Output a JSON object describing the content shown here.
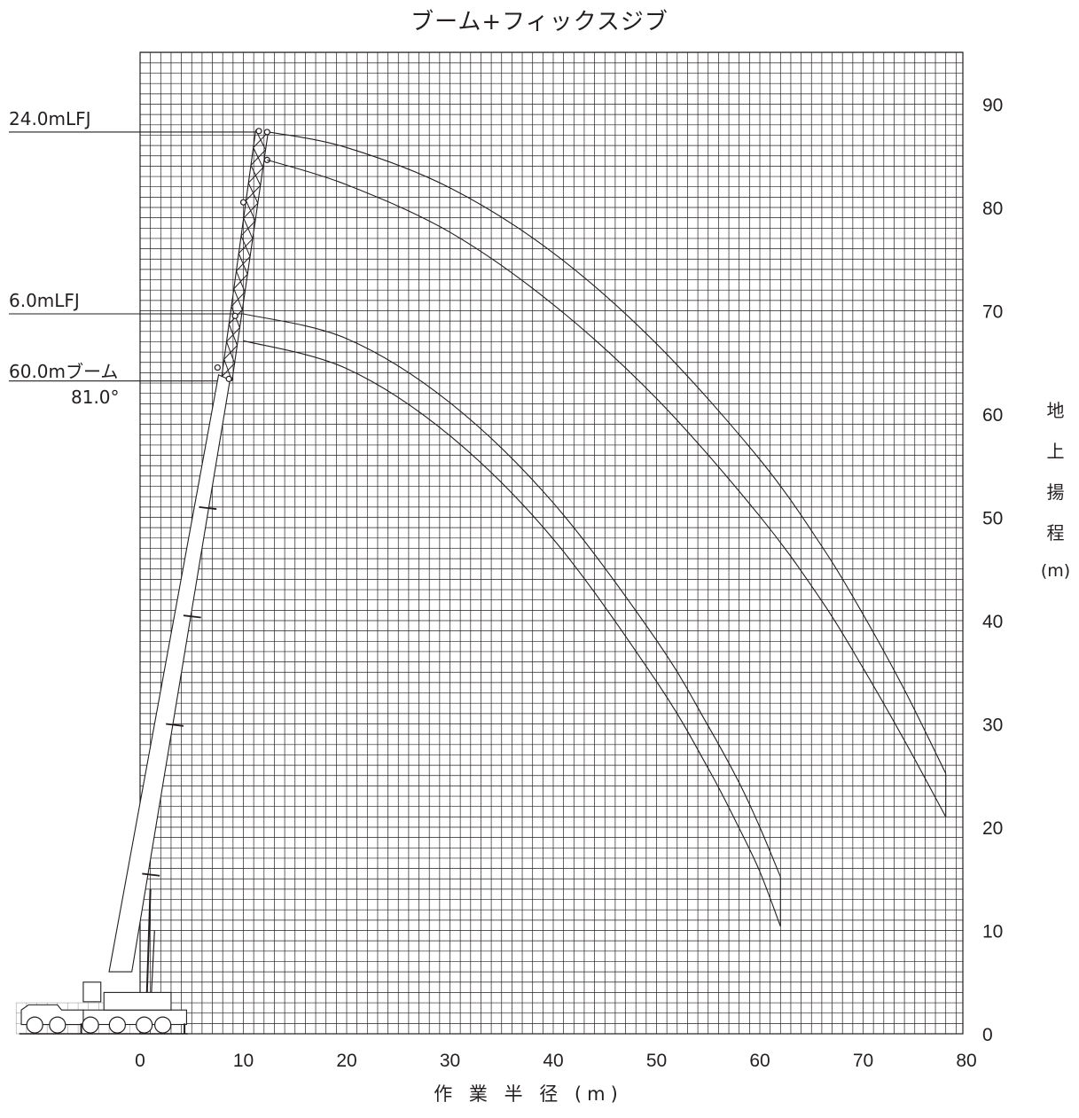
{
  "title": "ブーム+フィックスジブ",
  "y_axis_label": {
    "chars": [
      "地",
      "上",
      "揚",
      "程"
    ],
    "unit": "(m)"
  },
  "x_axis_label": "作 業 半 径 (m)",
  "callouts": {
    "jib_24": "24.0mLFJ",
    "jib_6": "6.0mLFJ",
    "boom": "60.0mブーム",
    "angle": "81.0°"
  },
  "colors": {
    "line": "#231f20",
    "grid": "#231f20",
    "background": "#ffffff"
  },
  "chart_data": {
    "type": "line",
    "title": "ブーム+フィックスジブ",
    "xlabel": "作 業 半 径 (m)",
    "ylabel": "地上揚程 (m)",
    "xlim": [
      -12,
      80
    ],
    "ylim": [
      0,
      92
    ],
    "x_ticks": [
      0,
      10,
      20,
      30,
      40,
      50,
      60,
      70,
      80
    ],
    "y_ticks": [
      0,
      10,
      20,
      30,
      40,
      50,
      60,
      70,
      80,
      90
    ],
    "grid": true,
    "grid_minor_step": 1,
    "series": [
      {
        "x": [
          12.5,
          20,
          30,
          40,
          50,
          60,
          66,
          70,
          74,
          78
        ],
        "y": [
          87.3,
          85.8,
          81.9,
          75.6,
          66.8,
          55.6,
          47.2,
          40.6,
          33.3,
          25.2
        ]
      },
      {
        "x": [
          12.3,
          20,
          30,
          40,
          50,
          60,
          66,
          70,
          74,
          78
        ],
        "y": [
          84.6,
          82.2,
          77.6,
          70.6,
          61.5,
          50.1,
          41.9,
          35.4,
          28.4,
          21.0
        ]
      },
      {
        "x": [
          10.0,
          20,
          30,
          40,
          50,
          55,
          58,
          60,
          62
        ],
        "y": [
          69.7,
          67.3,
          61.1,
          51.4,
          38.1,
          29.8,
          24.3,
          20.0,
          15.2
        ]
      },
      {
        "x": [
          10.0,
          20,
          30,
          40,
          50,
          55,
          58,
          60,
          62
        ],
        "y": [
          67.1,
          64.4,
          57.9,
          47.9,
          34.1,
          25.7,
          19.9,
          15.7,
          10.4
        ]
      }
    ],
    "configurations": [
      {
        "label": "24.0mLFJ",
        "height": 87.3
      },
      {
        "label": "6.0mLFJ",
        "height": 69.7
      },
      {
        "label": "60.0mブーム",
        "height": 63.2
      }
    ],
    "boom_angle": "81.0°"
  }
}
